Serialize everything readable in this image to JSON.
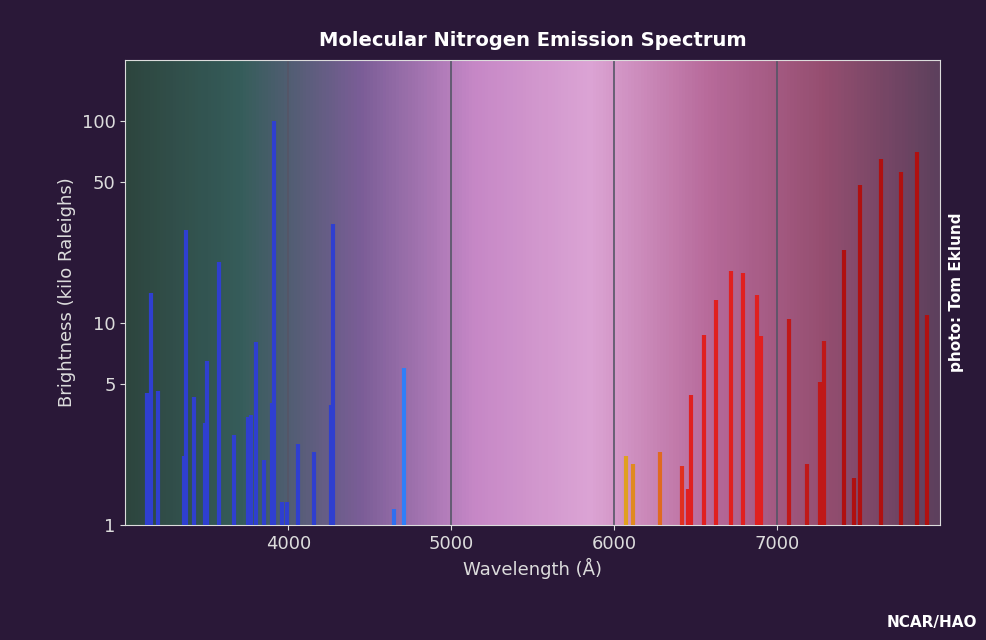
{
  "chart_data": {
    "type": "bar",
    "title": "Molecular Nitrogen Emission Spectrum",
    "x_label": "Wavelength (Å)",
    "y_label": "Brightness (kilo Raleighs)",
    "annotations": [
      "photo: Tom Eklund",
      "NCAR/HAO"
    ],
    "x": [
      3130,
      3159,
      3200,
      3360,
      3371,
      3420,
      3490,
      3500,
      3576,
      3670,
      3755,
      3770,
      3805,
      3850,
      3900,
      3914,
      3960,
      3990,
      4060,
      4160,
      4260,
      4278,
      4650,
      4709,
      6074,
      6117,
      6282,
      6417,
      6454,
      6472,
      6552,
      6626,
      6718,
      6791,
      6877,
      6902,
      7074,
      7184,
      7264,
      7288,
      7411,
      7472,
      7509,
      7638,
      7761,
      7859,
      7920
    ],
    "values": [
      4.5,
      14,
      4.6,
      2.2,
      29,
      4.3,
      3.2,
      6.5,
      20,
      2.8,
      3.4,
      3.5,
      8,
      2.1,
      4,
      100,
      1.3,
      1.3,
      2.5,
      2.3,
      3.9,
      31,
      1.2,
      6,
      2.2,
      2.0,
      2.3,
      1.96,
      1.5,
      4.4,
      8.7,
      13,
      18,
      17.7,
      13.7,
      8.6,
      10.5,
      2,
      5.1,
      8.1,
      23,
      1.7,
      48,
      65,
      56,
      70,
      11
    ],
    "colors": [
      "#2f3fd0",
      "#2f3fd0",
      "#2f3fd0",
      "#2f3fd0",
      "#2f3fd0",
      "#2f3fd0",
      "#2f3fd0",
      "#2f3fd0",
      "#2f3fd0",
      "#2f3fd0",
      "#2f3fd0",
      "#2f3fd0",
      "#2f3fd0",
      "#2f3fd0",
      "#2f3fd0",
      "#2f3fd0",
      "#2f3fd0",
      "#2f3fd0",
      "#2f3fd0",
      "#2f3fd0",
      "#2f3fd0",
      "#2f3fd0",
      "#2f6ff0",
      "#2f7ff8",
      "#e0a020",
      "#e08a20",
      "#e06a20",
      "#e03020",
      "#e02020",
      "#e02020",
      "#e02020",
      "#e02020",
      "#e02020",
      "#e02020",
      "#e02020",
      "#e02020",
      "#c01818",
      "#c01818",
      "#c01818",
      "#c01818",
      "#b01010",
      "#b01010",
      "#b01010",
      "#b01010",
      "#b01010",
      "#b01010",
      "#b01010"
    ],
    "xlim": [
      3000,
      8000
    ],
    "xticks": [
      4000,
      5000,
      6000,
      7000
    ],
    "ylim": [
      1,
      200
    ],
    "yticks": [
      1,
      5,
      10,
      50,
      100
    ],
    "log": "y",
    "grid": true
  }
}
